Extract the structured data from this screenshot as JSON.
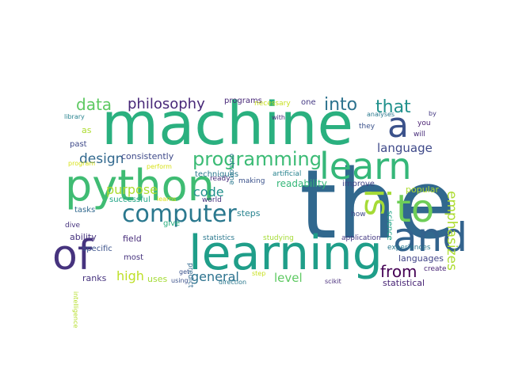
{
  "palette": {
    "background": "#ffffff",
    "dark_purple": "#440154",
    "indigo": "#3b528b",
    "blue": "#31688e",
    "teal": "#21918c",
    "green": "#35b779",
    "lime": "#8fd744",
    "yellow": "#c8e020"
  },
  "words": [
    {
      "text": "the",
      "color": "#31688e"
    },
    {
      "text": "machine",
      "color": "#2ab07f"
    },
    {
      "text": "learning",
      "color": "#1f9e89"
    },
    {
      "text": "python",
      "color": "#3fbc73"
    },
    {
      "text": "learn",
      "color": "#35b779"
    },
    {
      "text": "of",
      "color": "#46337e"
    },
    {
      "text": "and",
      "color": "#33638d"
    },
    {
      "text": "to",
      "color": "#6ece58"
    },
    {
      "text": "is",
      "color": "#a5db36"
    },
    {
      "text": "a",
      "color": "#3b528b"
    },
    {
      "text": "computer",
      "color": "#2a788e"
    },
    {
      "text": "programming",
      "color": "#3bbb75"
    },
    {
      "text": "emphasizes",
      "color": "#addc30"
    },
    {
      "text": "into",
      "color": "#2c728e"
    },
    {
      "text": "that",
      "color": "#21918c"
    },
    {
      "text": "data",
      "color": "#5ec962"
    },
    {
      "text": "philosophy",
      "color": "#482878"
    },
    {
      "text": "language",
      "color": "#3e4989"
    },
    {
      "text": "design",
      "color": "#31688e"
    },
    {
      "text": "purpose",
      "color": "#addc30"
    },
    {
      "text": "code",
      "color": "#21918c"
    },
    {
      "text": "from",
      "color": "#440154"
    },
    {
      "text": "high",
      "color": "#bddf26"
    },
    {
      "text": "general",
      "color": "#2c728e"
    },
    {
      "text": "level",
      "color": "#5ec962"
    },
    {
      "text": "readability",
      "color": "#35b779"
    },
    {
      "text": "popular",
      "color": "#addc30"
    },
    {
      "text": "languages",
      "color": "#414487"
    },
    {
      "text": "statistical",
      "color": "#482475"
    },
    {
      "text": "consistently",
      "color": "#3e4989"
    },
    {
      "text": "science",
      "color": "#20a486"
    },
    {
      "text": "uses",
      "color": "#a5db36"
    },
    {
      "text": "field",
      "color": "#472c7a"
    },
    {
      "text": "ability",
      "color": "#46337e"
    },
    {
      "text": "specific",
      "color": "#3b528b"
    },
    {
      "text": "most",
      "color": "#46337e"
    },
    {
      "text": "ranks",
      "color": "#46337e"
    },
    {
      "text": "techniques",
      "color": "#2a788e"
    },
    {
      "text": "programs",
      "color": "#482878"
    },
    {
      "text": "one",
      "color": "#443983"
    },
    {
      "text": "experiences",
      "color": "#2a788e"
    },
    {
      "text": "create",
      "color": "#482475"
    },
    {
      "text": "steps",
      "color": "#26828e"
    },
    {
      "text": "tasks",
      "color": "#31688e"
    },
    {
      "text": "successful",
      "color": "#20a486"
    },
    {
      "text": "give",
      "color": "#2ab07f"
    },
    {
      "text": "as",
      "color": "#addc30"
    },
    {
      "text": "past",
      "color": "#3e4989"
    },
    {
      "text": "how",
      "color": "#3e4989"
    },
    {
      "text": "application",
      "color": "#443983"
    },
    {
      "text": "improve",
      "color": "#414487"
    },
    {
      "text": "artificial",
      "color": "#26828e"
    },
    {
      "text": "making",
      "color": "#3b528b"
    },
    {
      "text": "ready",
      "color": "#472c7a"
    },
    {
      "text": "world",
      "color": "#46337e"
    },
    {
      "text": "statistics",
      "color": "#2a788e"
    },
    {
      "text": "studying",
      "color": "#a5db36"
    },
    {
      "text": "dive",
      "color": "#46337e"
    },
    {
      "text": "predict",
      "color": "#31688e"
    },
    {
      "text": "outcome",
      "color": "#2a788e"
    },
    {
      "text": "necessary",
      "color": "#c8e020"
    },
    {
      "text": "with",
      "color": "#472c7a"
    },
    {
      "text": "they",
      "color": "#3b528b"
    },
    {
      "text": "you",
      "color": "#481f70"
    },
    {
      "text": "will",
      "color": "#472c7a"
    },
    {
      "text": "analyses",
      "color": "#2a788e"
    },
    {
      "text": "by",
      "color": "#443983"
    },
    {
      "text": "library",
      "color": "#26828e"
    },
    {
      "text": "scikit",
      "color": "#472c7a"
    },
    {
      "text": "direction",
      "color": "#2a788e"
    },
    {
      "text": "using",
      "color": "#3b528b"
    },
    {
      "text": "step",
      "color": "#c8e020"
    },
    {
      "text": "get",
      "color": "#3b528b"
    },
    {
      "text": "intelligence",
      "color": "#b5de2b"
    },
    {
      "text": "learns",
      "color": "#d8e219"
    },
    {
      "text": "perform",
      "color": "#d8e219"
    },
    {
      "text": "program",
      "color": "#d8e219"
    }
  ]
}
